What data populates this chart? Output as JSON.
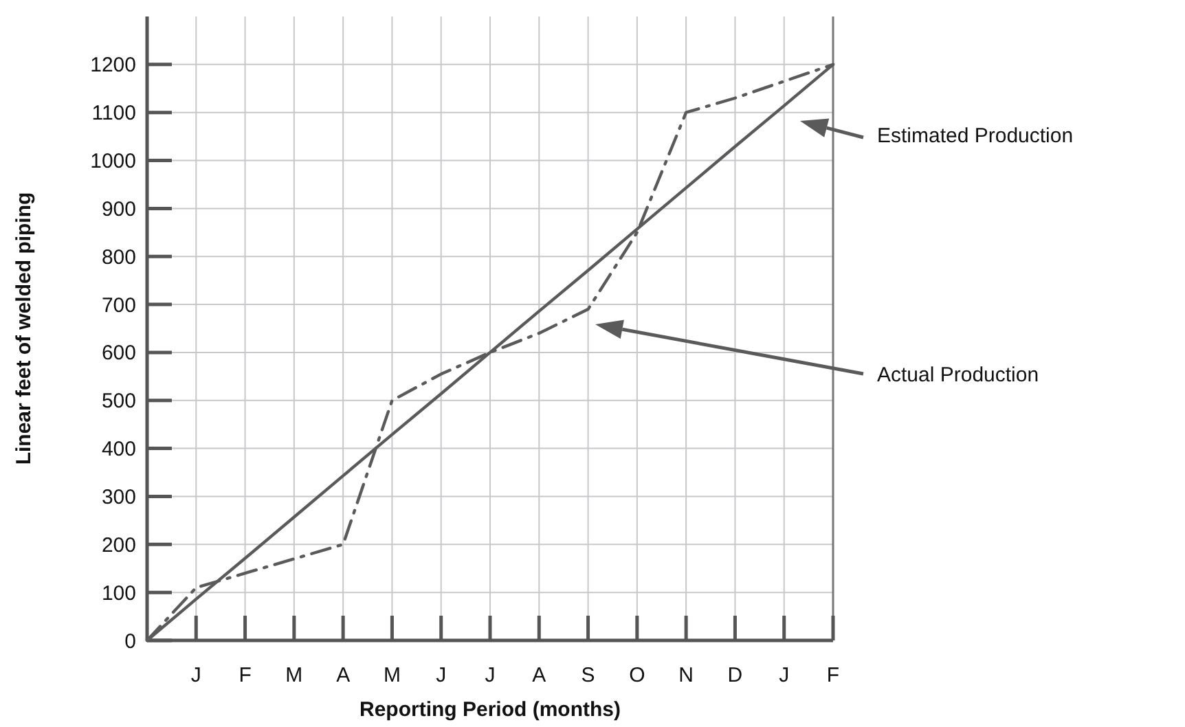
{
  "chart_data": {
    "type": "line",
    "xlabel": "Reporting Period (months)",
    "ylabel": "Linear feet of welded piping",
    "categories": [
      null,
      "J",
      "F",
      "M",
      "A",
      "M",
      "J",
      "J",
      "A",
      "S",
      "O",
      "N",
      "D",
      "J",
      "F"
    ],
    "ylim": [
      0,
      1300
    ],
    "yticks": [
      0,
      100,
      200,
      300,
      400,
      500,
      600,
      700,
      800,
      900,
      1000,
      1100,
      1200
    ],
    "grid": true,
    "marker": "none",
    "series": [
      {
        "color": "#5a5a5a",
        "line_style": "solid",
        "values": [
          0,
          86,
          171,
          257,
          343,
          429,
          514,
          600,
          686,
          771,
          857,
          943,
          1029,
          1114,
          1200
        ]
      },
      {
        "color": "#5a5a5a",
        "line_style": "dashdot",
        "values": [
          0,
          110,
          140,
          170,
          200,
          500,
          555,
          600,
          640,
          690,
          850,
          1100,
          1130,
          1165,
          1200
        ]
      }
    ],
    "annotations": [
      "Estimated Production",
      "Actual Production"
    ]
  }
}
